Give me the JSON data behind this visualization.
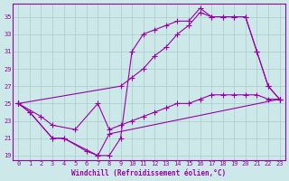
{
  "xlabel": "Windchill (Refroidissement éolien,°C)",
  "bg_color": "#cce8e8",
  "line_color": "#9900aa",
  "grid_color": "#aacccc",
  "spine_color": "#9900aa",
  "ylim": [
    18.5,
    36.5
  ],
  "xlim": [
    -0.5,
    23.5
  ],
  "yticks": [
    19,
    21,
    23,
    25,
    27,
    29,
    31,
    33,
    35
  ],
  "xticks": [
    0,
    1,
    2,
    3,
    4,
    5,
    6,
    7,
    8,
    9,
    10,
    11,
    12,
    13,
    14,
    15,
    16,
    17,
    18,
    19,
    20,
    21,
    22,
    23
  ],
  "line1_x": [
    0,
    1,
    3,
    4,
    6,
    7,
    8,
    23
  ],
  "line1_y": [
    25,
    24,
    21,
    21,
    19.5,
    19,
    21.5,
    25.5
  ],
  "line2_x": [
    0,
    2,
    3,
    5,
    7,
    8,
    9,
    10,
    11,
    12,
    13,
    14,
    15,
    16,
    17,
    18,
    19,
    20,
    21,
    22,
    23
  ],
  "line2_y": [
    25,
    23.5,
    22.5,
    22,
    25,
    22,
    22.5,
    23,
    23.5,
    24,
    24.5,
    25,
    25,
    25.5,
    26,
    26,
    26,
    26,
    26,
    25.5,
    25.5
  ],
  "line3_x": [
    0,
    1,
    3,
    4,
    7,
    8,
    9,
    10,
    11,
    12,
    13,
    14,
    15,
    16,
    17,
    18,
    19,
    20,
    21,
    22,
    23
  ],
  "line3_y": [
    25,
    24,
    21,
    21,
    19,
    19,
    21,
    31,
    33,
    33.5,
    34,
    34.5,
    34.5,
    36,
    35,
    35,
    35,
    35,
    31,
    27,
    25.5
  ],
  "line4_x": [
    0,
    9,
    10,
    11,
    12,
    13,
    14,
    15,
    16,
    17,
    18,
    19,
    20,
    21,
    22,
    23
  ],
  "line4_y": [
    25,
    27,
    28,
    29,
    30.5,
    31.5,
    33,
    34,
    35.5,
    35,
    35,
    35,
    35,
    31,
    27,
    25.5
  ]
}
